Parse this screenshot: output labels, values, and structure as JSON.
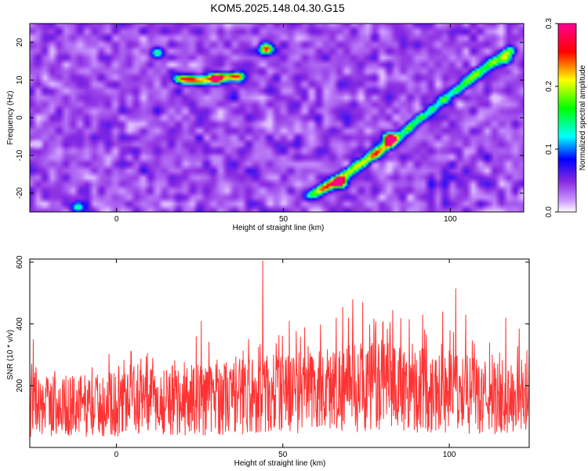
{
  "figure": {
    "title": "KOM5.2025.148.04.30.G15"
  },
  "chart_data": [
    {
      "type": "heatmap",
      "title": "KOM5.2025.148.04.30.G15",
      "xlabel": "Height of straight line (km)",
      "ylabel": "Frequency (Hz)",
      "xlim": [
        -26,
        122
      ],
      "ylim": [
        -25,
        25
      ],
      "x_ticks": [
        "0",
        "50",
        "100"
      ],
      "y_ticks": [
        "20",
        "10",
        "0",
        "-10",
        "-20"
      ],
      "colorbar": {
        "label": "Normalized spectral amplitude",
        "range": [
          0,
          0.3
        ],
        "ticks": [
          "0.0",
          "0.1",
          "0.2",
          "0.3"
        ],
        "colormap": [
          "#ffffff",
          "#cc99ff",
          "#8a2be2",
          "#0000ff",
          "#00ffff",
          "#00ff00",
          "#ffff00",
          "#ff0000",
          "#ff0090"
        ]
      },
      "background_level": 0.035,
      "features": [
        {
          "name": "ridge",
          "points": [
            [
              58,
              -21
            ],
            [
              66,
              -17
            ],
            [
              74,
              -12
            ],
            [
              82,
              -7
            ],
            [
              90,
              -1
            ],
            [
              100,
              6
            ],
            [
              110,
              13
            ],
            [
              120,
              19
            ]
          ],
          "amplitude": 0.13
        },
        {
          "name": "ridge",
          "points": [
            [
              18,
              10.5
            ],
            [
              25,
              10
            ],
            [
              32,
              11
            ],
            [
              38,
              11
            ]
          ],
          "amplitude": 0.1
        },
        {
          "name": "peak",
          "points": [
            [
              45,
              18.5
            ]
          ],
          "amplitude": 0.22
        },
        {
          "name": "peak",
          "points": [
            [
              67,
              -17.5
            ]
          ],
          "amplitude": 0.27
        },
        {
          "name": "peak",
          "points": [
            [
              82,
              -5.5
            ]
          ],
          "amplitude": 0.28
        },
        {
          "name": "peak",
          "points": [
            [
              30,
              10.5
            ]
          ],
          "amplitude": 0.2
        },
        {
          "name": "peak",
          "points": [
            [
              12,
              17.5
            ]
          ],
          "amplitude": 0.13
        },
        {
          "name": "peak",
          "points": [
            [
              -12,
              -24
            ]
          ],
          "amplitude": 0.1
        },
        {
          "name": "peak",
          "points": [
            [
              117,
              15.5
            ]
          ],
          "amplitude": 0.12
        }
      ]
    },
    {
      "type": "line",
      "xlabel": "Height of straight line (km)",
      "ylabel": "SNR (10 * v/v)",
      "xlim": [
        -26,
        124
      ],
      "ylim": [
        0,
        610
      ],
      "x_ticks": [
        "0",
        "50",
        "100"
      ],
      "y_ticks": [
        "600",
        "400",
        "200"
      ],
      "color": "#ff3333",
      "series": [
        {
          "x_start": -26,
          "x_end": 124,
          "n_points": 1300,
          "baseline_envelope": [
            [
              -26,
              130
            ],
            [
              0,
              140
            ],
            [
              25,
              155
            ],
            [
              40,
              170
            ],
            [
              50,
              175
            ],
            [
              65,
              190
            ],
            [
              80,
              200
            ],
            [
              95,
              185
            ],
            [
              110,
              160
            ],
            [
              124,
              155
            ]
          ],
          "peaks": [
            [
              -25,
              350
            ],
            [
              9,
              295
            ],
            [
              24,
              360
            ],
            [
              25.5,
              410
            ],
            [
              44,
              605
            ],
            [
              52,
              410
            ],
            [
              66,
              420
            ],
            [
              68,
              455
            ],
            [
              71,
              480
            ],
            [
              74,
              470
            ],
            [
              83,
              445
            ],
            [
              88,
              415
            ],
            [
              92,
              430
            ],
            [
              98,
              440
            ],
            [
              102,
              515
            ],
            [
              105,
              430
            ],
            [
              117,
              420
            ],
            [
              121,
              385
            ]
          ]
        }
      ]
    }
  ]
}
